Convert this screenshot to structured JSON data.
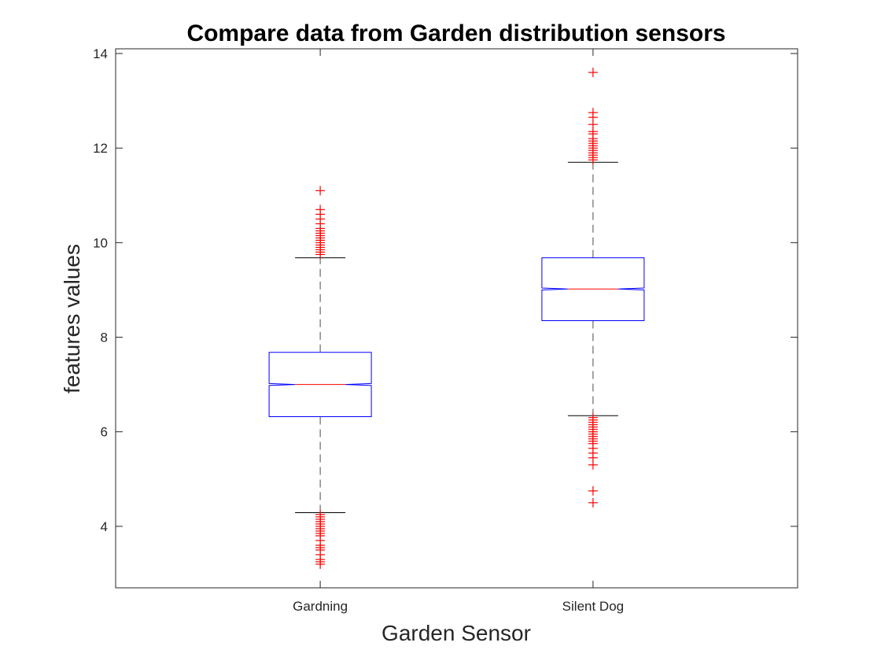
{
  "chart_data": {
    "type": "boxplot",
    "title": "Compare data from Garden distribution sensors",
    "xlabel": "Garden Sensor",
    "ylabel": "features values",
    "categories": [
      "Gardning",
      "Silent Dog"
    ],
    "ylim": [
      2.7,
      14.1
    ],
    "yticks": [
      4,
      6,
      8,
      10,
      12,
      14
    ],
    "notched": true,
    "grid": false,
    "colors": {
      "box": "#0000ff",
      "median": "#ff0000",
      "whisker": "#000000",
      "outlier": "#ff0000",
      "axis": "#262626"
    },
    "boxes": [
      {
        "name": "Gardning",
        "q1": 6.32,
        "median": 7.0,
        "q3": 7.68,
        "whisker_low": 4.29,
        "whisker_high": 9.68,
        "notch_low": 6.98,
        "notch_high": 7.02,
        "outliers": [
          3.2,
          3.25,
          3.3,
          3.4,
          3.5,
          3.55,
          3.6,
          3.7,
          3.8,
          3.85,
          3.9,
          3.95,
          4.0,
          4.05,
          4.1,
          4.15,
          4.2,
          4.25,
          9.75,
          9.8,
          9.85,
          9.9,
          9.95,
          10.0,
          10.05,
          10.1,
          10.15,
          10.2,
          10.25,
          10.3,
          10.4,
          10.5,
          10.6,
          10.7,
          11.1
        ]
      },
      {
        "name": "Silent Dog",
        "q1": 8.35,
        "median": 9.02,
        "q3": 9.68,
        "whisker_low": 6.34,
        "whisker_high": 11.7,
        "notch_low": 9.0,
        "notch_high": 9.04,
        "outliers": [
          4.5,
          4.75,
          5.3,
          5.45,
          5.55,
          5.65,
          5.75,
          5.8,
          5.85,
          5.9,
          5.95,
          6.0,
          6.05,
          6.1,
          6.15,
          6.2,
          6.25,
          6.3,
          11.75,
          11.8,
          11.85,
          11.9,
          11.95,
          12.0,
          12.05,
          12.1,
          12.15,
          12.2,
          12.3,
          12.35,
          12.5,
          12.65,
          12.75,
          13.6
        ]
      }
    ]
  }
}
